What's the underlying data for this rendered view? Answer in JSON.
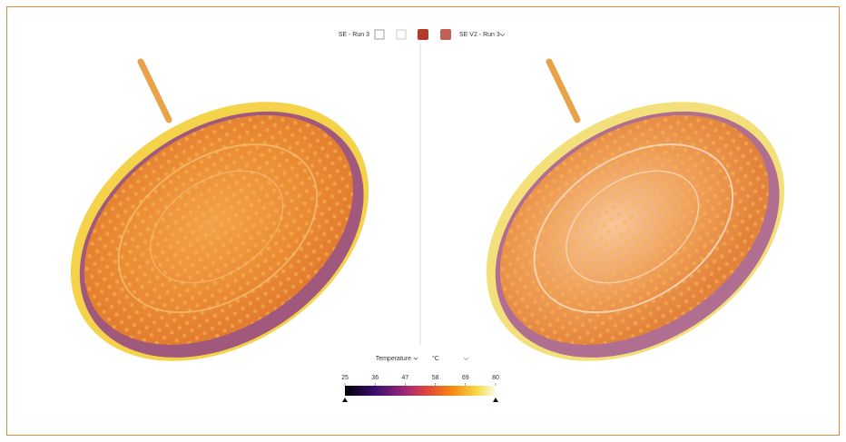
{
  "toolbar": {
    "left_run": "SE - Run 3",
    "right_run": "SE V2 - Run 3"
  },
  "legend": {
    "field": "Temperature",
    "unit": "°C",
    "ticks": [
      25,
      36,
      47,
      58,
      69,
      80
    ]
  }
}
